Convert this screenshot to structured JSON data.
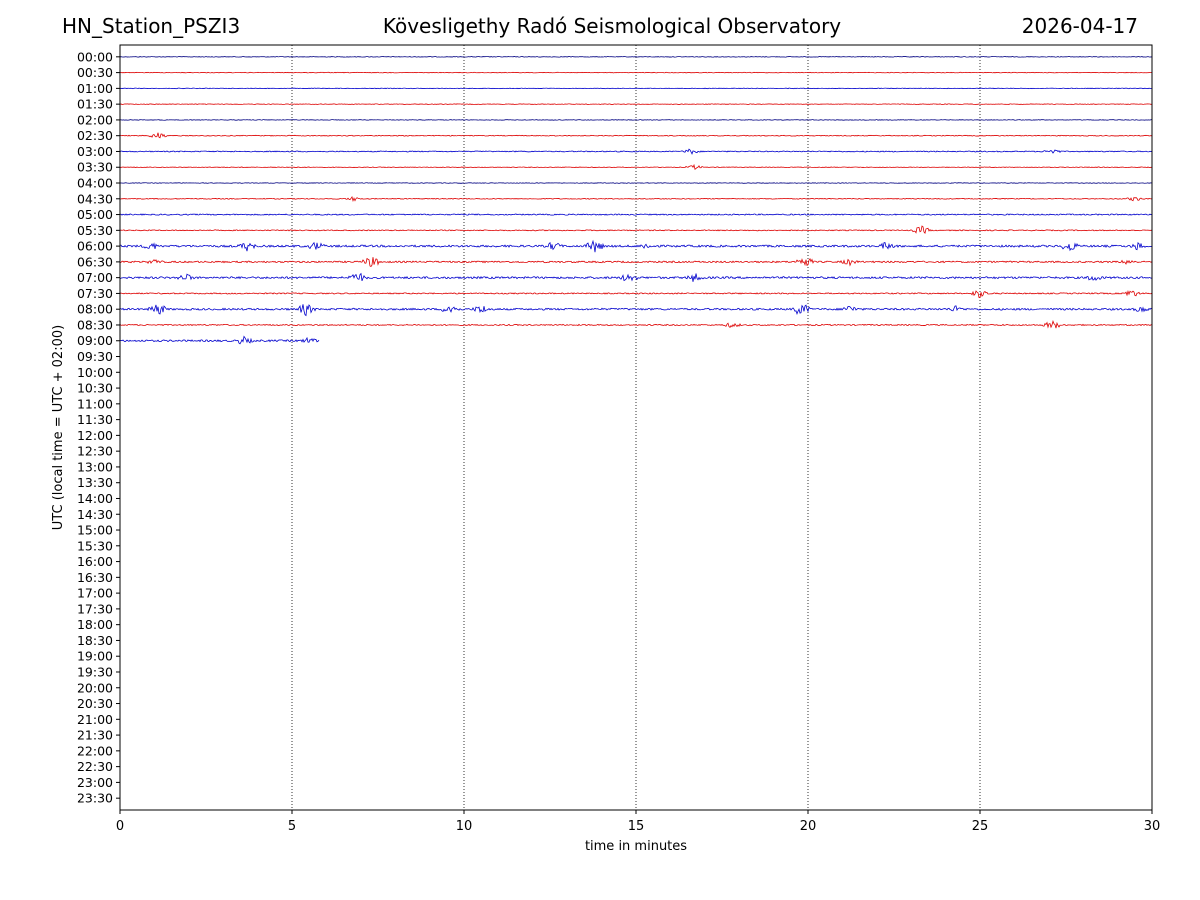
{
  "header": {
    "station": "HN_Station_PSZI3",
    "observatory": "Kövesligethy Radó Seismological Observatory",
    "date": "2026-04-17"
  },
  "chart_data": {
    "type": "line",
    "subtype": "helicorder",
    "xlabel": "time in minutes",
    "ylabel": "UTC (local time = UTC + 02:00)",
    "xlim": [
      0,
      30
    ],
    "x_ticks": [
      0,
      5,
      10,
      15,
      20,
      25,
      30
    ],
    "x_gridlines": [
      5,
      10,
      15,
      20,
      25
    ],
    "grid": "vertical dotted",
    "row_labels": [
      "00:00",
      "00:30",
      "01:00",
      "01:30",
      "02:00",
      "02:30",
      "03:00",
      "03:30",
      "04:00",
      "04:30",
      "05:00",
      "05:30",
      "06:00",
      "06:30",
      "07:00",
      "07:30",
      "08:00",
      "08:30",
      "09:00",
      "09:30",
      "10:00",
      "10:30",
      "11:00",
      "11:30",
      "12:00",
      "12:30",
      "13:00",
      "13:30",
      "14:00",
      "14:30",
      "15:00",
      "15:30",
      "16:00",
      "16:30",
      "17:00",
      "17:30",
      "18:00",
      "18:30",
      "19:00",
      "19:30",
      "20:00",
      "20:30",
      "21:00",
      "21:30",
      "22:00",
      "22:30",
      "23:00",
      "23:30"
    ],
    "colors": {
      "odd_rows": "#0000cc",
      "even_rows": "#dd0000"
    },
    "traces": [
      {
        "row": "00:00",
        "color": "#000080",
        "end_minute": 30,
        "amplitude": 0.3
      },
      {
        "row": "00:30",
        "color": "#dd0000",
        "end_minute": 30,
        "amplitude": 0.3
      },
      {
        "row": "01:00",
        "color": "#0000cc",
        "end_minute": 30,
        "amplitude": 0.3
      },
      {
        "row": "01:30",
        "color": "#dd0000",
        "end_minute": 30,
        "amplitude": 0.3
      },
      {
        "row": "02:00",
        "color": "#000080",
        "end_minute": 30,
        "amplitude": 0.3
      },
      {
        "row": "02:30",
        "color": "#dd0000",
        "end_minute": 30,
        "amplitude": 0.4,
        "bursts": [
          [
            1.1,
            1.2
          ]
        ]
      },
      {
        "row": "03:00",
        "color": "#0000cc",
        "end_minute": 30,
        "amplitude": 0.5,
        "bursts": [
          [
            16.6,
            1.0
          ],
          [
            27.1,
            1.0
          ]
        ]
      },
      {
        "row": "03:30",
        "color": "#dd0000",
        "end_minute": 30,
        "amplitude": 0.3,
        "bursts": [
          [
            16.7,
            0.8
          ]
        ]
      },
      {
        "row": "04:00",
        "color": "#000080",
        "end_minute": 30,
        "amplitude": 0.3
      },
      {
        "row": "04:30",
        "color": "#dd0000",
        "end_minute": 30,
        "amplitude": 0.4,
        "bursts": [
          [
            6.8,
            0.8
          ],
          [
            29.5,
            0.8
          ]
        ]
      },
      {
        "row": "05:00",
        "color": "#0000cc",
        "end_minute": 30,
        "amplitude": 0.6
      },
      {
        "row": "05:30",
        "color": "#dd0000",
        "end_minute": 30,
        "amplitude": 0.5,
        "bursts": [
          [
            23.3,
            1.5
          ]
        ]
      },
      {
        "row": "06:00",
        "color": "#0000cc",
        "end_minute": 30,
        "amplitude": 1.0,
        "bursts": [
          [
            0.9,
            1.5
          ],
          [
            3.7,
            1.8
          ],
          [
            5.7,
            1.6
          ],
          [
            12.6,
            1.6
          ],
          [
            13.8,
            2.4
          ],
          [
            15.3,
            1.2
          ],
          [
            22.3,
            1.5
          ],
          [
            27.6,
            2.0
          ],
          [
            29.6,
            1.5
          ]
        ]
      },
      {
        "row": "06:30",
        "color": "#dd0000",
        "end_minute": 30,
        "amplitude": 0.8,
        "bursts": [
          [
            1.0,
            1.0
          ],
          [
            7.3,
            2.0
          ],
          [
            19.9,
            2.0
          ],
          [
            21.2,
            1.2
          ],
          [
            29.3,
            1.0
          ]
        ]
      },
      {
        "row": "07:00",
        "color": "#0000cc",
        "end_minute": 30,
        "amplitude": 1.0,
        "bursts": [
          [
            1.9,
            1.5
          ],
          [
            6.9,
            2.0
          ],
          [
            14.8,
            1.8
          ],
          [
            16.7,
            1.6
          ],
          [
            28.3,
            1.4
          ]
        ]
      },
      {
        "row": "07:30",
        "color": "#dd0000",
        "end_minute": 30,
        "amplitude": 0.6,
        "bursts": [
          [
            25.0,
            1.6
          ],
          [
            29.4,
            1.4
          ]
        ]
      },
      {
        "row": "08:00",
        "color": "#0000cc",
        "end_minute": 30,
        "amplitude": 0.9,
        "bursts": [
          [
            1.1,
            2.2
          ],
          [
            5.4,
            2.2
          ],
          [
            9.6,
            2.0
          ],
          [
            10.5,
            1.6
          ],
          [
            19.8,
            2.4
          ],
          [
            21.2,
            1.4
          ],
          [
            24.3,
            1.2
          ],
          [
            29.7,
            1.2
          ]
        ]
      },
      {
        "row": "08:30",
        "color": "#dd0000",
        "end_minute": 30,
        "amplitude": 0.6,
        "bursts": [
          [
            17.8,
            1.0
          ],
          [
            27.1,
            1.6
          ]
        ]
      },
      {
        "row": "09:00",
        "color": "#0000cc",
        "end_minute": 5.8,
        "amplitude": 0.9,
        "bursts": [
          [
            3.6,
            1.5
          ],
          [
            5.5,
            1.2
          ]
        ]
      }
    ]
  }
}
